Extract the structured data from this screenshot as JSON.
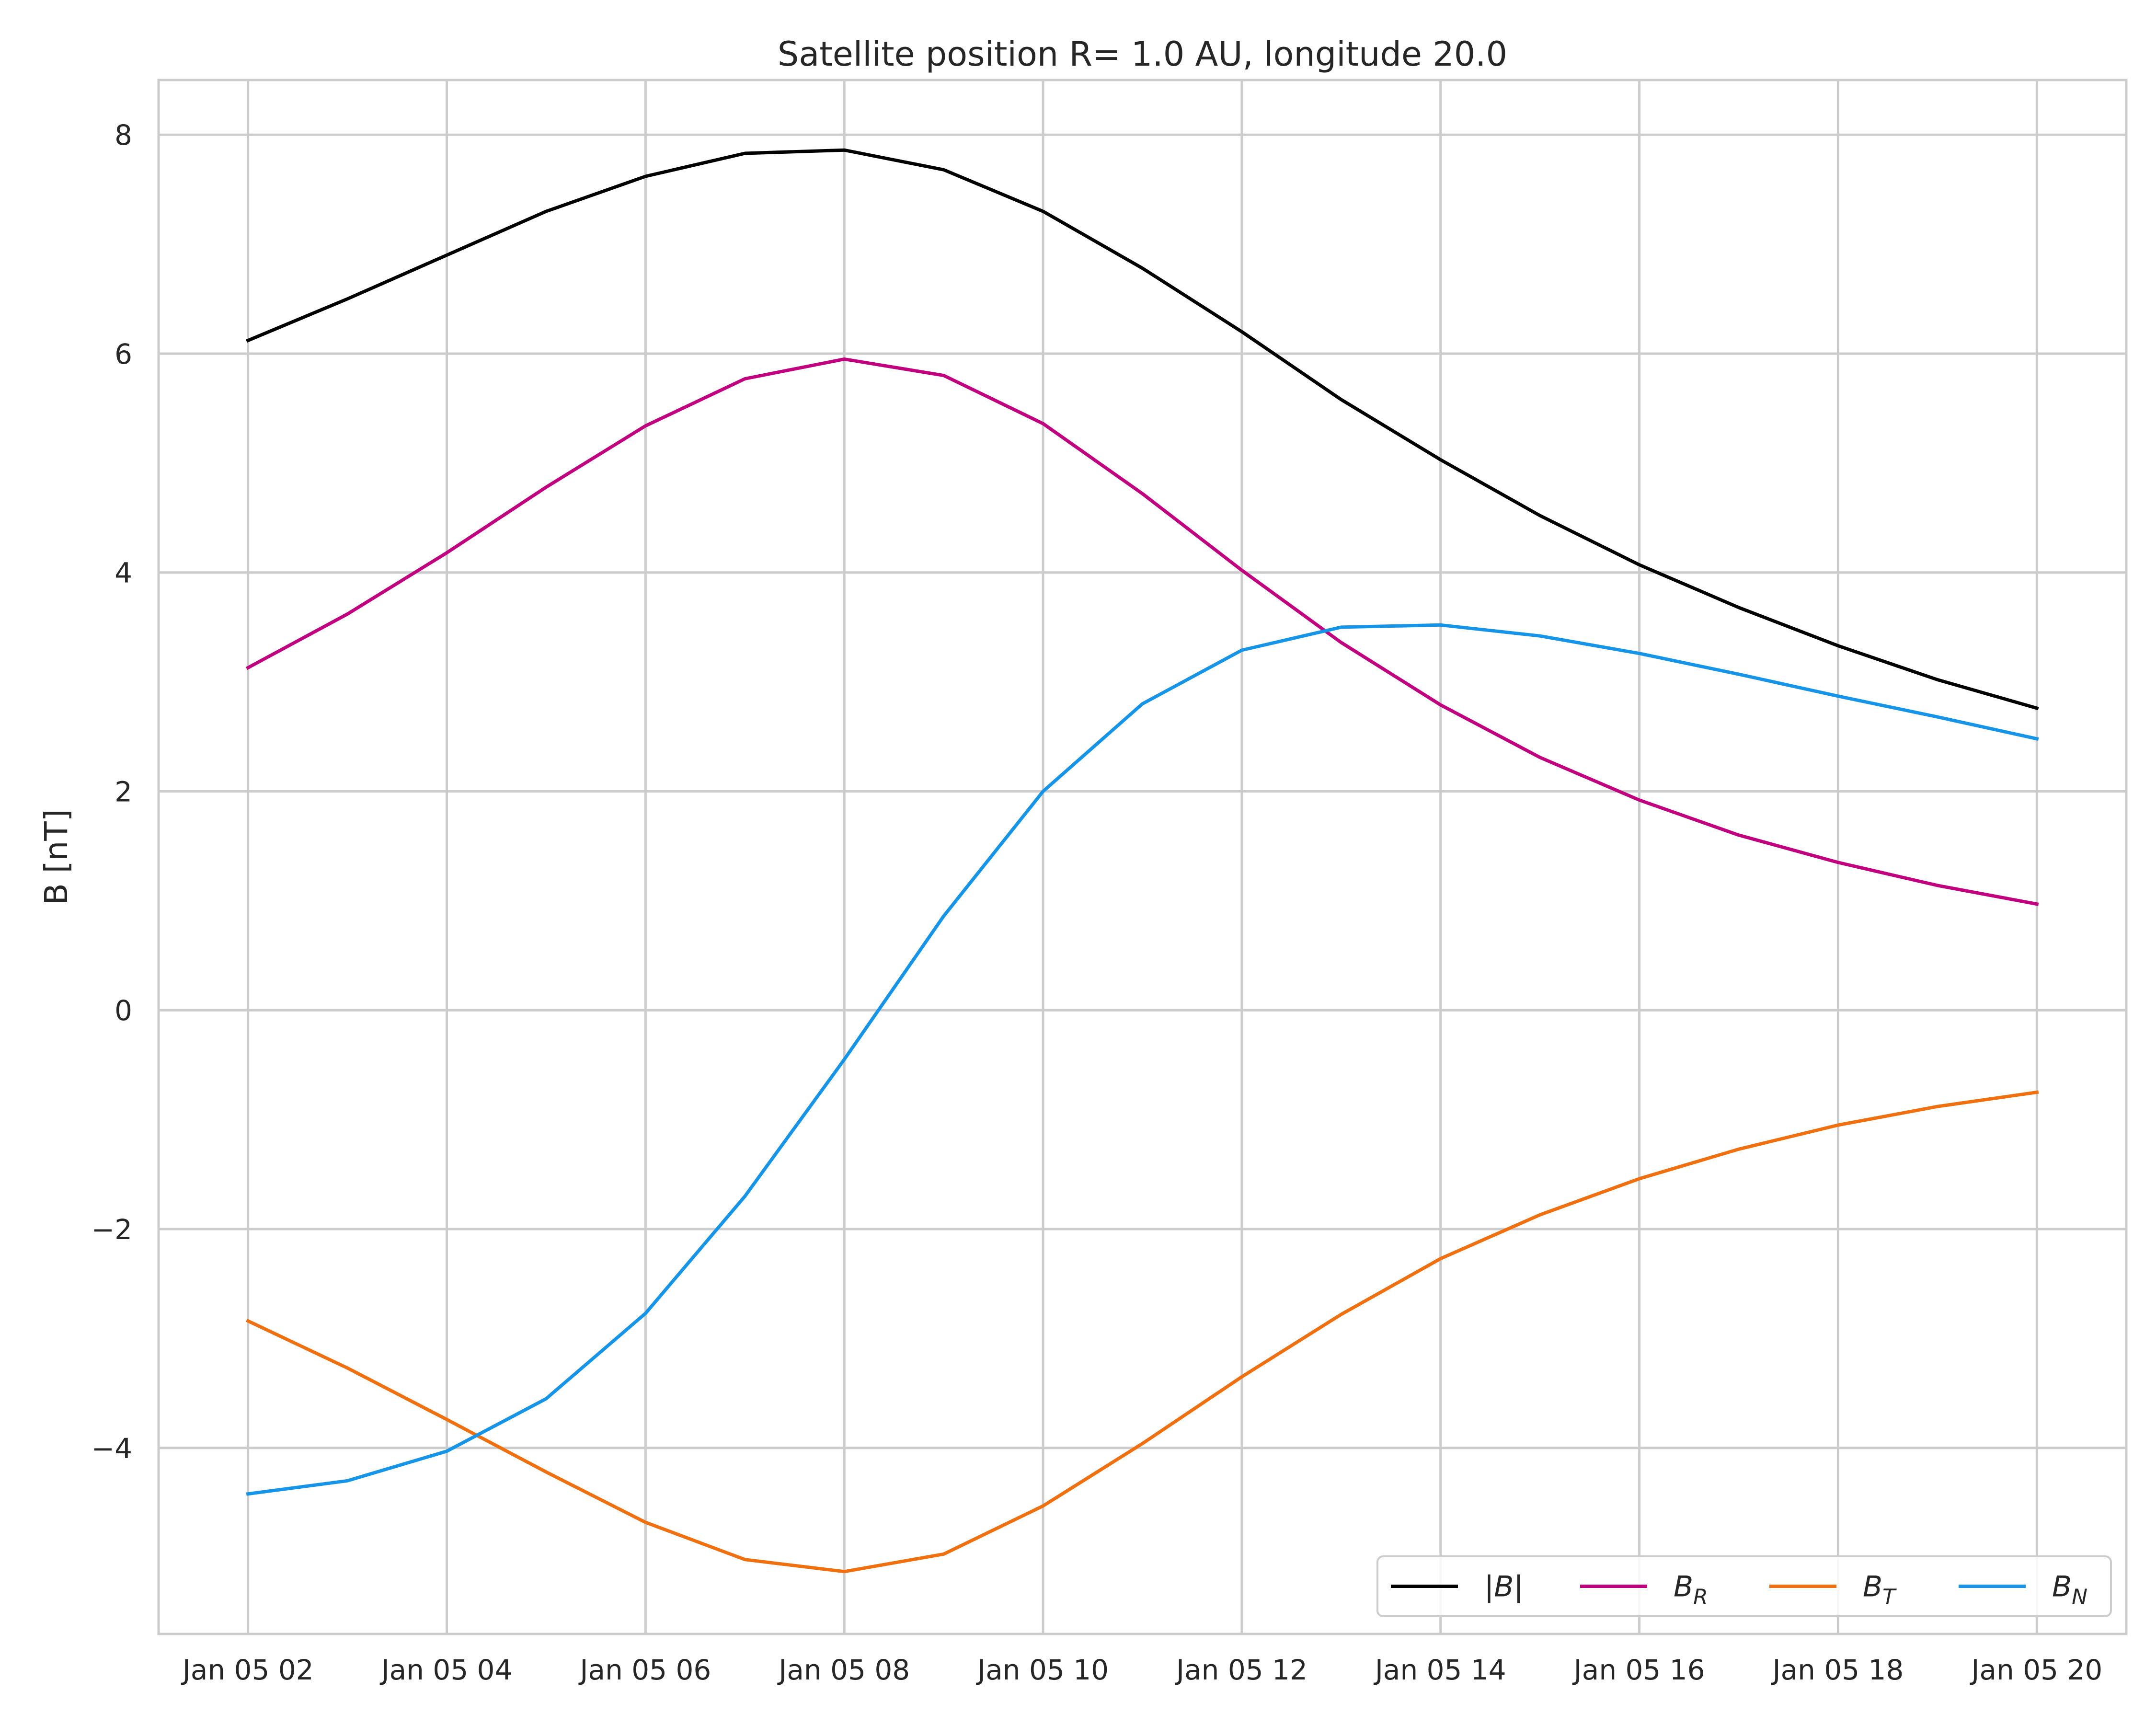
{
  "chart_data": {
    "type": "line",
    "title": "Satellite position R= 1.0 AU, longitude 20.0",
    "xlabel": "",
    "ylabel": "B [nT]",
    "x": [
      "Jan 05 02",
      "Jan 05 03",
      "Jan 05 04",
      "Jan 05 05",
      "Jan 05 06",
      "Jan 05 07",
      "Jan 05 08",
      "Jan 05 09",
      "Jan 05 10",
      "Jan 05 11",
      "Jan 05 12",
      "Jan 05 13",
      "Jan 05 14",
      "Jan 05 15",
      "Jan 05 16",
      "Jan 05 17",
      "Jan 05 18",
      "Jan 05 19",
      "Jan 05 20"
    ],
    "xticks": [
      "Jan 05 02",
      "Jan 05 04",
      "Jan 05 06",
      "Jan 05 08",
      "Jan 05 10",
      "Jan 05 12",
      "Jan 05 14",
      "Jan 05 16",
      "Jan 05 18",
      "Jan 05 20"
    ],
    "xlim": [
      "Jan 05 01:06",
      "Jan 05 20:54"
    ],
    "ylim": [
      -5.7,
      8.5
    ],
    "yticks": [
      8,
      6,
      4,
      2,
      0,
      -2,
      -4
    ],
    "ytick_labels": [
      "8",
      "6",
      "4",
      "2",
      "0",
      "−2",
      "−4"
    ],
    "grid": true,
    "legend_position": "lower-right",
    "series": [
      {
        "name": "|B|",
        "color": "#000000",
        "values": [
          6.12,
          6.5,
          6.9,
          7.3,
          7.62,
          7.83,
          7.86,
          7.68,
          7.3,
          6.78,
          6.2,
          5.58,
          5.03,
          4.52,
          4.07,
          3.68,
          3.33,
          3.02,
          2.76
        ]
      },
      {
        "name": "B_R",
        "color": "#c0007f",
        "values": [
          3.13,
          3.62,
          4.18,
          4.78,
          5.34,
          5.77,
          5.95,
          5.8,
          5.36,
          4.72,
          4.02,
          3.36,
          2.79,
          2.31,
          1.92,
          1.6,
          1.35,
          1.14,
          0.97
        ]
      },
      {
        "name": "B_T",
        "color": "#f07010",
        "values": [
          -2.84,
          -3.27,
          -3.74,
          -4.22,
          -4.68,
          -5.02,
          -5.13,
          -4.97,
          -4.53,
          -3.96,
          -3.35,
          -2.78,
          -2.27,
          -1.87,
          -1.54,
          -1.27,
          -1.05,
          -0.88,
          -0.75
        ]
      },
      {
        "name": "B_N",
        "color": "#1694e8",
        "values": [
          -4.42,
          -4.3,
          -4.03,
          -3.55,
          -2.77,
          -1.7,
          -0.45,
          0.86,
          2.0,
          2.8,
          3.29,
          3.5,
          3.52,
          3.42,
          3.26,
          3.07,
          2.87,
          2.68,
          2.48
        ]
      }
    ],
    "legend": [
      {
        "label": "|B|",
        "base": "|B|",
        "sub": ""
      },
      {
        "label": "B_R",
        "base": "B",
        "sub": "R"
      },
      {
        "label": "B_T",
        "base": "B",
        "sub": "T"
      },
      {
        "label": "B_N",
        "base": "B",
        "sub": "N"
      }
    ]
  }
}
